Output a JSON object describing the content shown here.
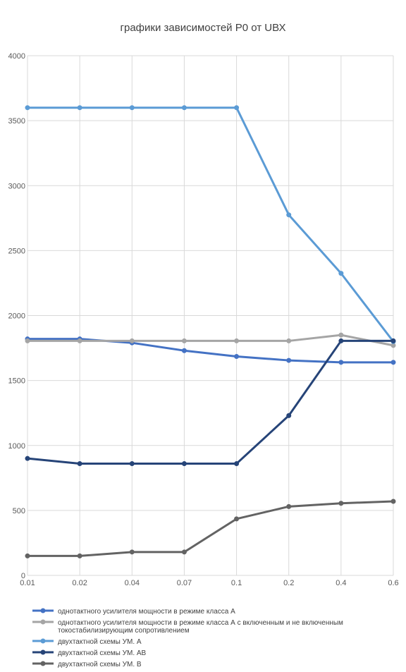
{
  "chart_data": {
    "type": "line",
    "title": "графики зависимостей Р0 от UВХ",
    "xlabel": "",
    "ylabel": "",
    "categories": [
      "0.01",
      "0.02",
      "0.04",
      "0.07",
      "0.1",
      "0.2",
      "0.4",
      "0.6"
    ],
    "ylim": [
      0,
      4000
    ],
    "yticks": [
      "0",
      "500",
      "1000",
      "1500",
      "2000",
      "2500",
      "3000",
      "3500",
      "4000"
    ],
    "grid": true,
    "legend_position": "bottom",
    "series": [
      {
        "name": "однотактного усилителя мощности в режиме класса А",
        "name_lines": [
          "однотактного усилителя мощности в режиме класса А"
        ],
        "color": "#4472c4",
        "values": [
          1820,
          1820,
          1790,
          1730,
          1685,
          1655,
          1640,
          1640
        ]
      },
      {
        "name": "однотактного усилителя мощности в режиме класса А с включенным и не включенным токостабилизирующим сопротивлением",
        "name_lines": [
          "однотактного усилителя мощности в режиме класса А с включенным и не включенным",
          "токостабилизирующим сопротивлением"
        ],
        "color": "#a5a5a5",
        "values": [
          1805,
          1805,
          1805,
          1805,
          1805,
          1805,
          1850,
          1770
        ]
      },
      {
        "name": "двухтактной схемы УМ. А",
        "name_lines": [
          "двухтактной схемы УМ. А"
        ],
        "color": "#5b9bd5",
        "values": [
          3600,
          3600,
          3600,
          3600,
          3600,
          2775,
          2325,
          1800
        ]
      },
      {
        "name": "двухтактной схемы УМ. АВ",
        "name_lines": [
          "двухтактной схемы УМ. АВ"
        ],
        "color": "#264478",
        "values": [
          900,
          860,
          860,
          860,
          860,
          1230,
          1805,
          1805
        ]
      },
      {
        "name": "двухтактной схемы УМ. В",
        "name_lines": [
          "двухтактной схемы УМ. В"
        ],
        "color": "#636363",
        "values": [
          150,
          150,
          180,
          180,
          435,
          530,
          555,
          570
        ]
      }
    ]
  }
}
